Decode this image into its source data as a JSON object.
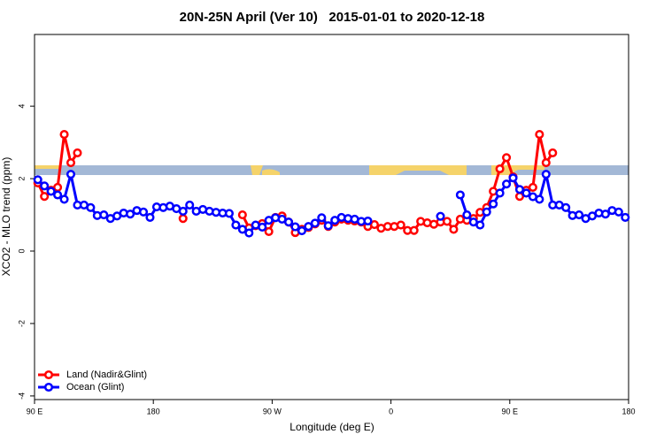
{
  "chart_data": {
    "type": "line",
    "title": "20N-25N April (Ver 10)   2015-01-01 to 2020-12-18",
    "xlabel": "Longitude (deg E)",
    "ylabel": "XCO2 - MLO trend (ppm)",
    "xlim": [
      90,
      540
    ],
    "ylim": [
      -4.1,
      5.98
    ],
    "xticks": [
      {
        "value": 90,
        "label": "90 E"
      },
      180,
      {
        "value": 270,
        "label": "90 W"
      },
      {
        "value": 360,
        "label": "0"
      },
      {
        "value": 450,
        "label": "90 E"
      },
      {
        "value": 540,
        "label": "180"
      }
    ],
    "yticks": [
      -4,
      -2,
      0,
      2,
      4
    ],
    "legend": "bottomleft",
    "x": [
      92.5,
      97.5,
      102.5,
      107.5,
      112.5,
      117.5,
      122.5,
      127.5,
      132.5,
      137.5,
      142.5,
      147.5,
      152.5,
      157.5,
      162.5,
      167.5,
      172.5,
      177.5,
      182.5,
      187.5,
      192.5,
      197.5,
      202.5,
      207.5,
      212.5,
      217.5,
      222.5,
      227.5,
      232.5,
      237.5,
      242.5,
      247.5,
      252.5,
      257.5,
      262.5,
      267.5,
      272.5,
      277.5,
      282.5,
      287.5,
      292.5,
      297.5,
      302.5,
      307.5,
      312.5,
      317.5,
      322.5,
      327.5,
      332.5,
      337.5,
      342.5,
      347.5,
      352.5,
      357.5,
      362.5,
      367.5,
      372.5,
      377.5,
      382.5,
      387.5,
      392.5,
      397.5,
      402.5,
      407.5,
      412.5,
      417.5,
      422.5,
      427.5,
      432.5,
      437.5,
      442.5,
      447.5,
      452.5,
      457.5,
      462.5,
      467.5,
      472.5,
      477.5,
      482.5,
      487.5,
      492.5,
      497.5,
      502.5,
      507.5,
      512.5,
      517.5,
      522.5,
      527.5,
      532.5,
      537.5
    ],
    "series": [
      {
        "name": "Land (Nadir&Glint)",
        "color": "#ff0000",
        "values": [
          1.88,
          1.51,
          1.68,
          1.76,
          3.22,
          2.44,
          2.71,
          null,
          null,
          null,
          null,
          null,
          null,
          null,
          null,
          null,
          null,
          null,
          null,
          null,
          null,
          null,
          0.9,
          null,
          null,
          null,
          null,
          null,
          null,
          null,
          null,
          1.0,
          0.64,
          0.7,
          0.76,
          0.54,
          0.93,
          0.97,
          0.8,
          0.51,
          0.6,
          0.65,
          0.75,
          0.85,
          0.68,
          0.8,
          0.88,
          0.85,
          0.83,
          0.8,
          0.68,
          0.73,
          0.63,
          0.68,
          0.68,
          0.72,
          0.57,
          0.57,
          0.82,
          0.78,
          0.74,
          0.8,
          0.82,
          0.6,
          0.88,
          0.85,
          0.9,
          1.07,
          1.2,
          1.65,
          2.27,
          2.58,
          2.05,
          1.51,
          1.68,
          1.76,
          3.22,
          2.44,
          2.71,
          null,
          null,
          null,
          null,
          null,
          null,
          null,
          null,
          null,
          null,
          null
        ]
      },
      {
        "name": "Ocean (Glint)",
        "color": "#0000ff",
        "values": [
          1.97,
          1.8,
          1.65,
          1.55,
          1.43,
          2.12,
          1.27,
          1.27,
          1.2,
          0.98,
          1.0,
          0.9,
          0.97,
          1.05,
          1.02,
          1.12,
          1.08,
          0.93,
          1.22,
          1.2,
          1.24,
          1.17,
          1.1,
          1.27,
          1.1,
          1.15,
          1.1,
          1.07,
          1.05,
          1.04,
          0.72,
          0.6,
          0.5,
          0.72,
          0.66,
          0.85,
          0.92,
          0.88,
          0.8,
          0.67,
          0.56,
          0.68,
          0.77,
          0.92,
          0.7,
          0.85,
          0.93,
          0.9,
          0.88,
          0.82,
          0.83,
          null,
          null,
          null,
          null,
          null,
          null,
          null,
          null,
          null,
          null,
          0.96,
          null,
          null,
          1.55,
          1.0,
          0.8,
          0.72,
          1.08,
          1.3,
          1.6,
          1.85,
          2.02,
          1.7,
          1.6,
          1.5,
          1.43,
          2.12,
          1.27,
          1.27,
          1.2,
          0.98,
          1.0,
          0.9,
          0.97,
          1.05,
          1.02,
          1.12,
          1.08,
          0.93
        ]
      }
    ]
  }
}
